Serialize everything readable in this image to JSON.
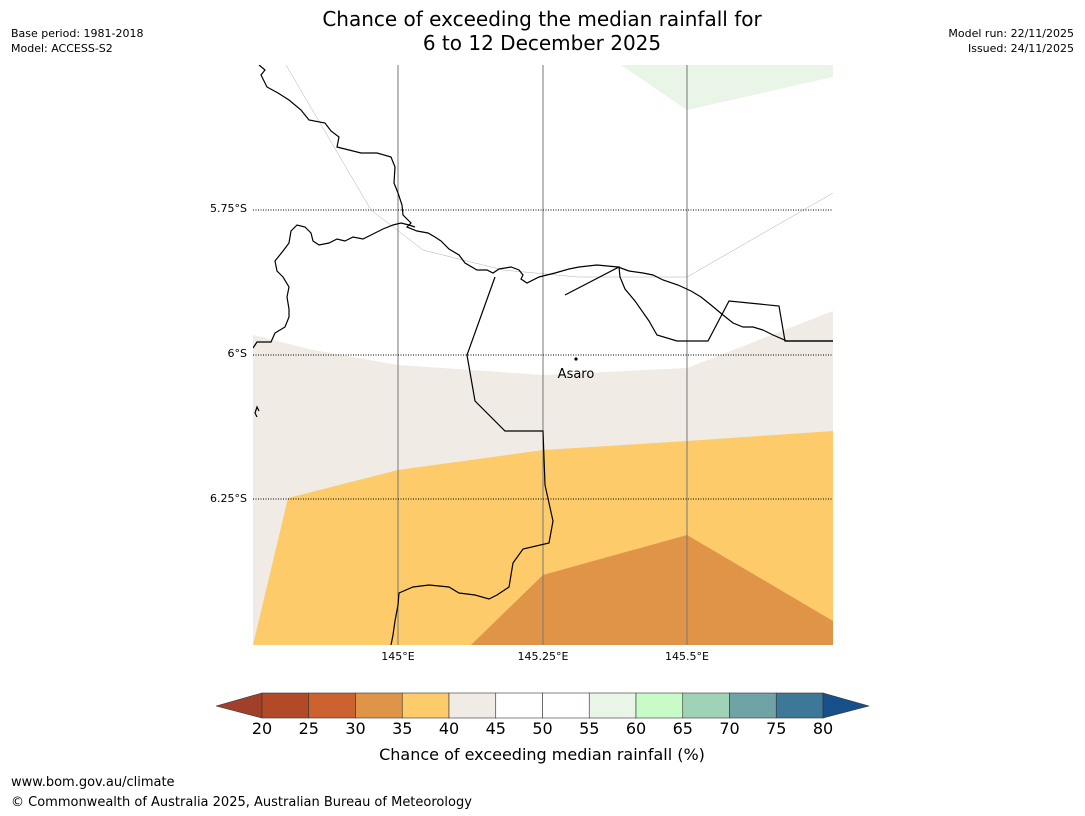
{
  "header": {
    "base_period": "Base period: 1981-2018",
    "model": "Model: ACCESS-S2",
    "model_run": "Model run: 22/11/2025",
    "issued": "Issued: 24/11/2025",
    "title_line1": "Chance of exceeding the median rainfall for",
    "title_line2": "6 to 12 December 2025"
  },
  "map": {
    "lat_labels": [
      "5.75°S",
      "6°S",
      "6.25°S"
    ],
    "lon_labels": [
      "145°E",
      "145.25°E",
      "145.5°E"
    ],
    "place": {
      "name": "Asaro"
    },
    "colors": {
      "below_20": "#a0402a",
      "c20_25": "#b24a28",
      "c25_30": "#cc6230",
      "c30_35": "#e09448",
      "c35_40": "#fdcb6a",
      "c40_45": "#f0ebe5",
      "c45_55": "#ffffff",
      "c55_60": "#e9f5e7",
      "c60_65": "#c8fbc8",
      "c65_70": "#a0d2b8",
      "c70_75": "#6fa3a5",
      "c75_80": "#3e7898",
      "above_80": "#164f8a"
    }
  },
  "colorbar": {
    "ticks": [
      "20",
      "25",
      "30",
      "35",
      "40",
      "45",
      "50",
      "55",
      "60",
      "65",
      "70",
      "75",
      "80"
    ],
    "label": "Chance of exceeding median rainfall (%)"
  },
  "footer": {
    "url": "www.bom.gov.au/climate",
    "copyright": "© Commonwealth of Australia 2025, Australian Bureau of Meteorology"
  }
}
